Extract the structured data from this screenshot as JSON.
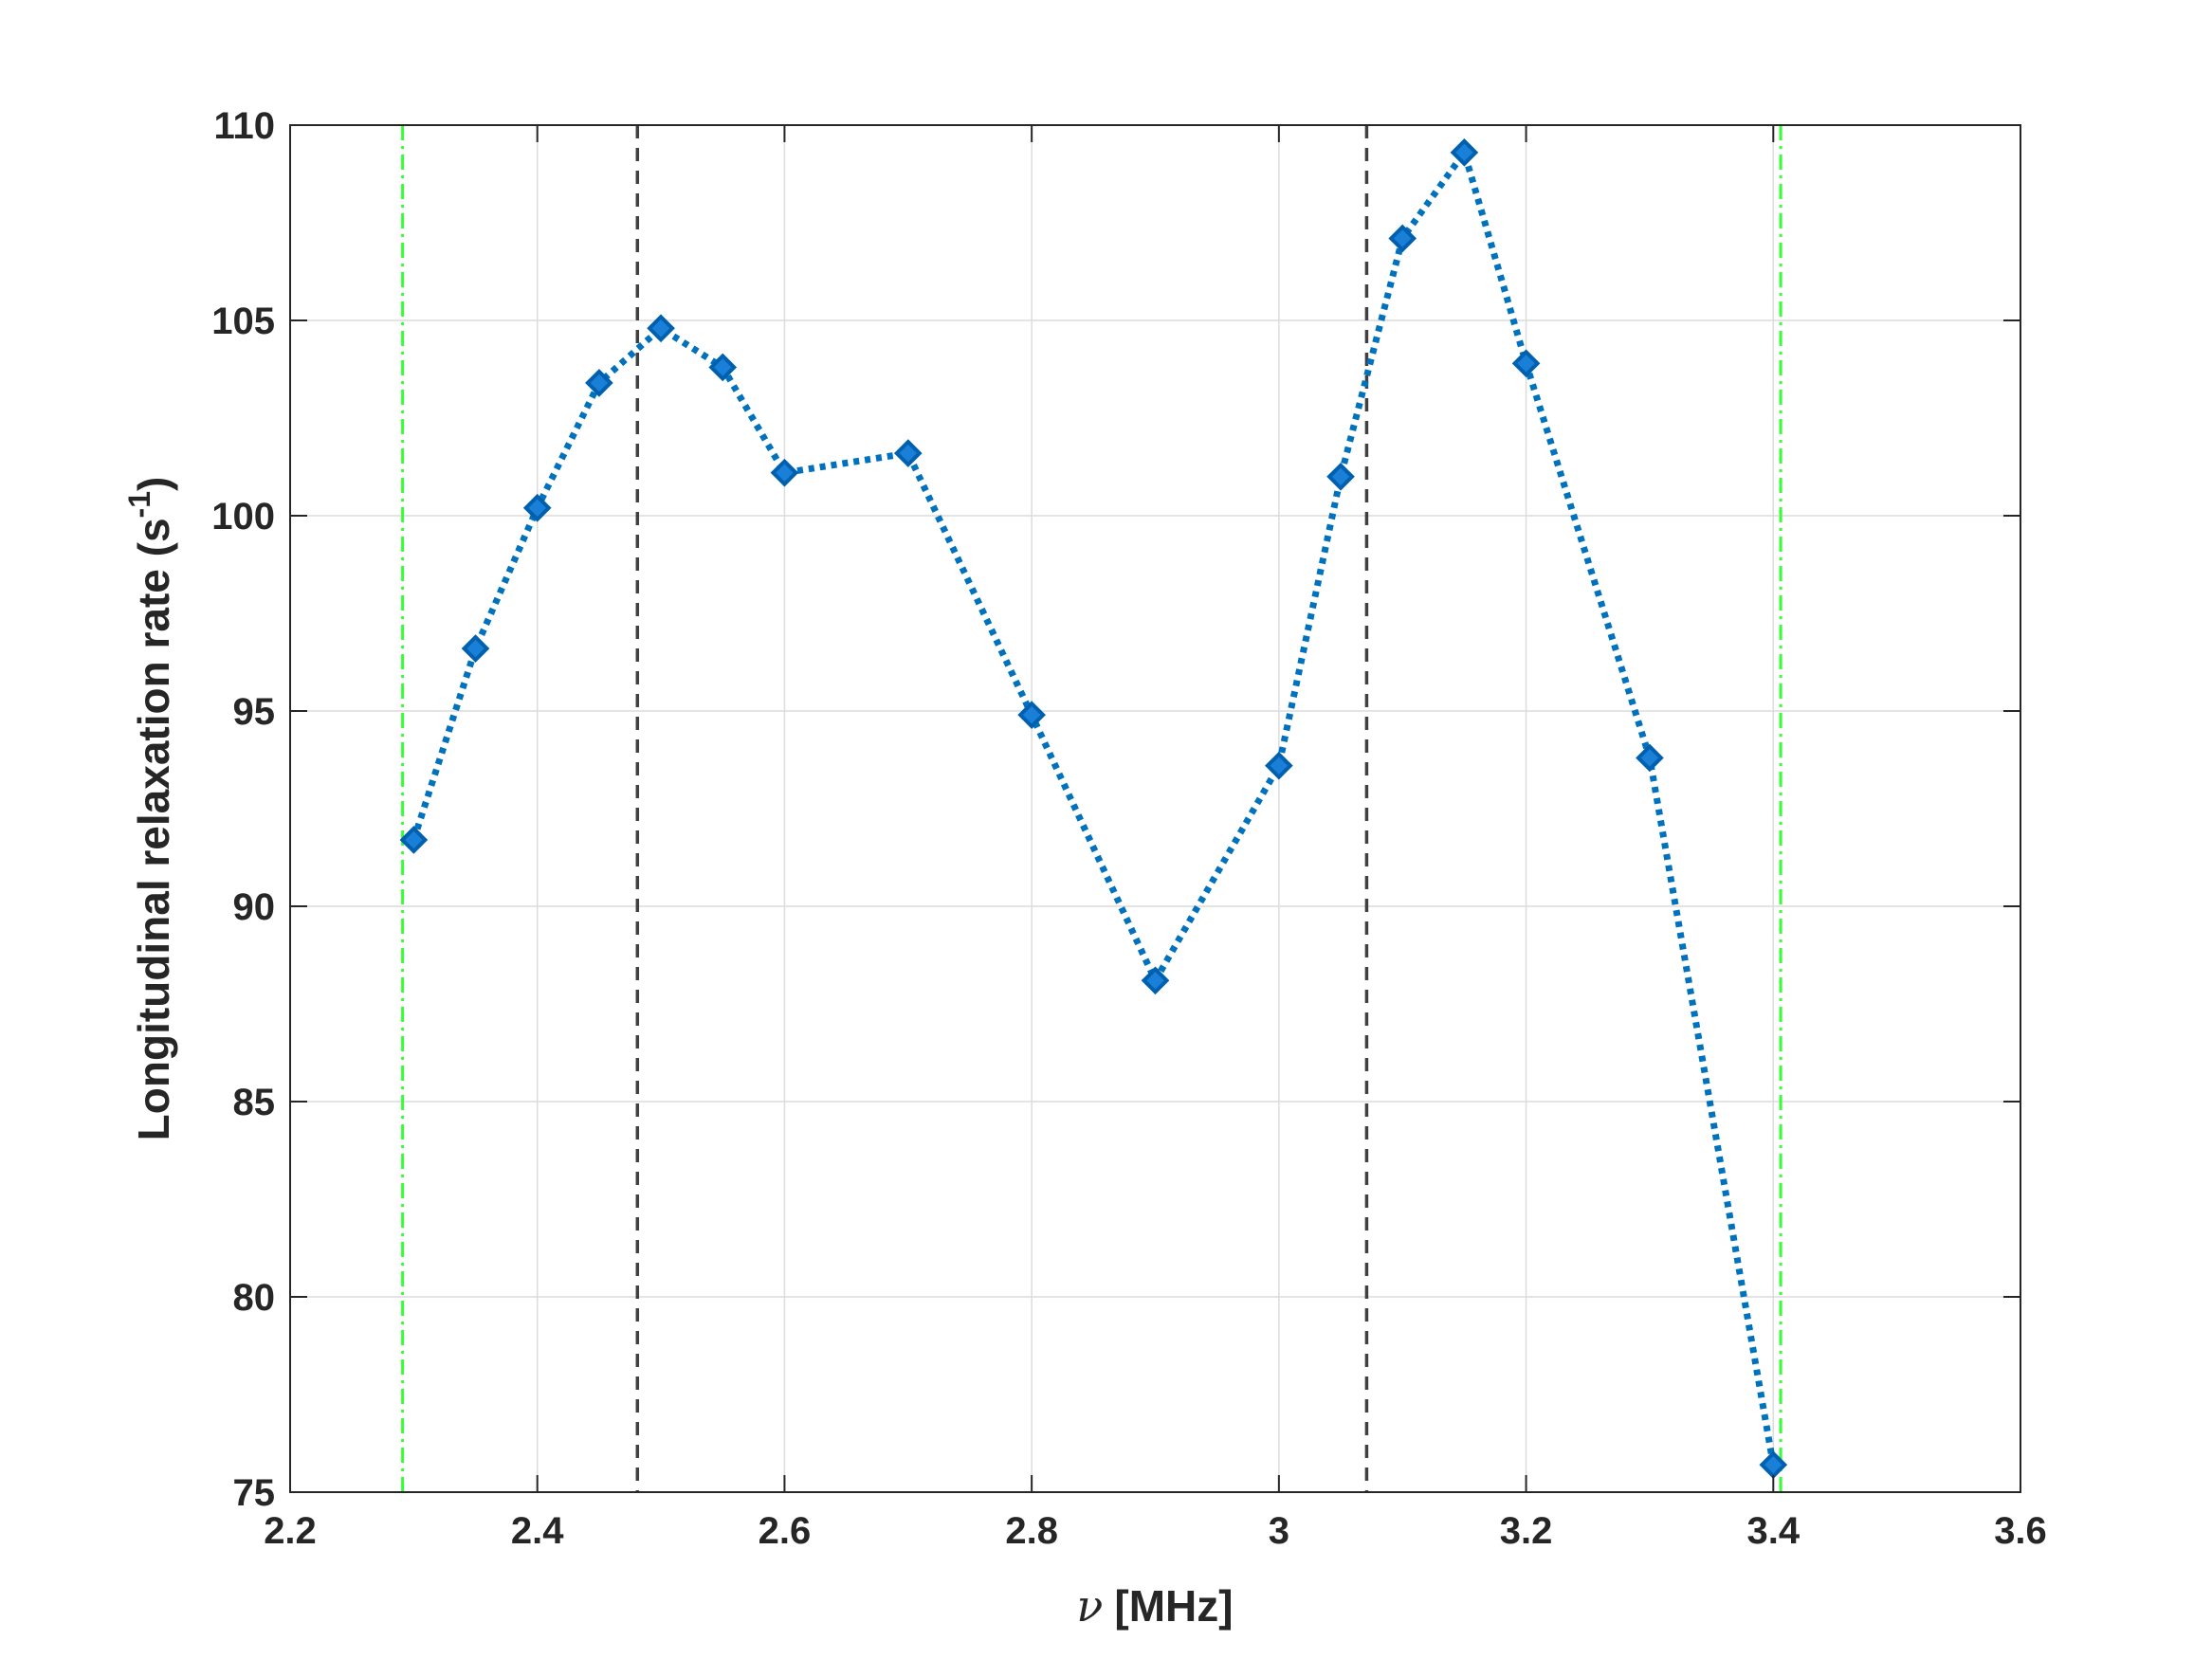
{
  "chart_data": {
    "type": "line",
    "title": "",
    "xlabel_symbol": "ν",
    "xlabel": "[MHz]",
    "ylabel": "Longitudinal relaxation rate (s",
    "ylabel_sup": "-1",
    "ylabel_tail": ")",
    "xlim": [
      2.2,
      3.6
    ],
    "ylim": [
      75,
      110
    ],
    "xticks": [
      2.2,
      2.4,
      2.6,
      2.8,
      3.0,
      3.2,
      3.4,
      3.6
    ],
    "xtick_labels": [
      "2.2",
      "2.4",
      "2.6",
      "2.8",
      "3",
      "3.2",
      "3.4",
      "3.6"
    ],
    "yticks": [
      75,
      80,
      85,
      90,
      95,
      100,
      105,
      110
    ],
    "ytick_labels": [
      "75",
      "80",
      "85",
      "90",
      "95",
      "100",
      "105",
      "110"
    ],
    "grid": true,
    "series": [
      {
        "color": "#0072BD",
        "line_style": "dotted",
        "marker": "diamond",
        "x": [
          2.3,
          2.35,
          2.4,
          2.45,
          2.5,
          2.55,
          2.6,
          2.7,
          2.8,
          2.9,
          3.0,
          3.05,
          3.1,
          3.15,
          3.2,
          3.3,
          3.4
        ],
        "y": [
          91.7,
          96.6,
          100.2,
          103.4,
          104.8,
          103.8,
          101.1,
          101.6,
          94.9,
          88.1,
          93.6,
          101.0,
          107.1,
          109.3,
          103.9,
          93.8,
          75.7
        ]
      }
    ],
    "reference_lines": [
      {
        "x": 2.291,
        "color": "#33ff33",
        "style": "dash-dot"
      },
      {
        "x": 2.481,
        "color": "#404040",
        "style": "dashed"
      },
      {
        "x": 3.071,
        "color": "#404040",
        "style": "dashed"
      },
      {
        "x": 3.406,
        "color": "#33ff33",
        "style": "dash-dot"
      }
    ]
  }
}
